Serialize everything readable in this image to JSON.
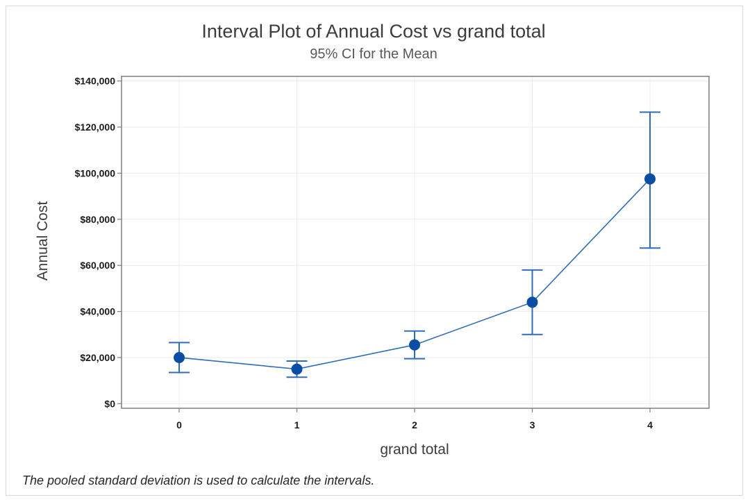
{
  "chart_data": {
    "type": "interval",
    "title": "Interval Plot of Annual Cost vs grand total",
    "subtitle": "95% CI for the Mean",
    "xlabel": "grand total",
    "ylabel": "Annual Cost",
    "footnote": "The pooled standard deviation is used to calculate the intervals.",
    "categories": [
      "0",
      "1",
      "2",
      "3",
      "4"
    ],
    "y_ticks": [
      0,
      20000,
      40000,
      60000,
      80000,
      100000,
      120000,
      140000
    ],
    "y_tick_labels": [
      "$0",
      "$20,000",
      "$40,000",
      "$60,000",
      "$80,000",
      "$100,000",
      "$120,000",
      "$140,000"
    ],
    "ylim": [
      -2000,
      142000
    ],
    "grid": true,
    "series": [
      {
        "mean": [
          20000,
          15000,
          25500,
          44000,
          97500
        ],
        "lower": [
          13500,
          11500,
          19500,
          30000,
          67500
        ],
        "upper": [
          26500,
          18500,
          31500,
          58000,
          126500
        ]
      }
    ],
    "colors": {
      "marker": "#0a4ea3",
      "line": "#2f6db5",
      "grid": "#ececec",
      "axis": "#7f7f7f"
    }
  }
}
